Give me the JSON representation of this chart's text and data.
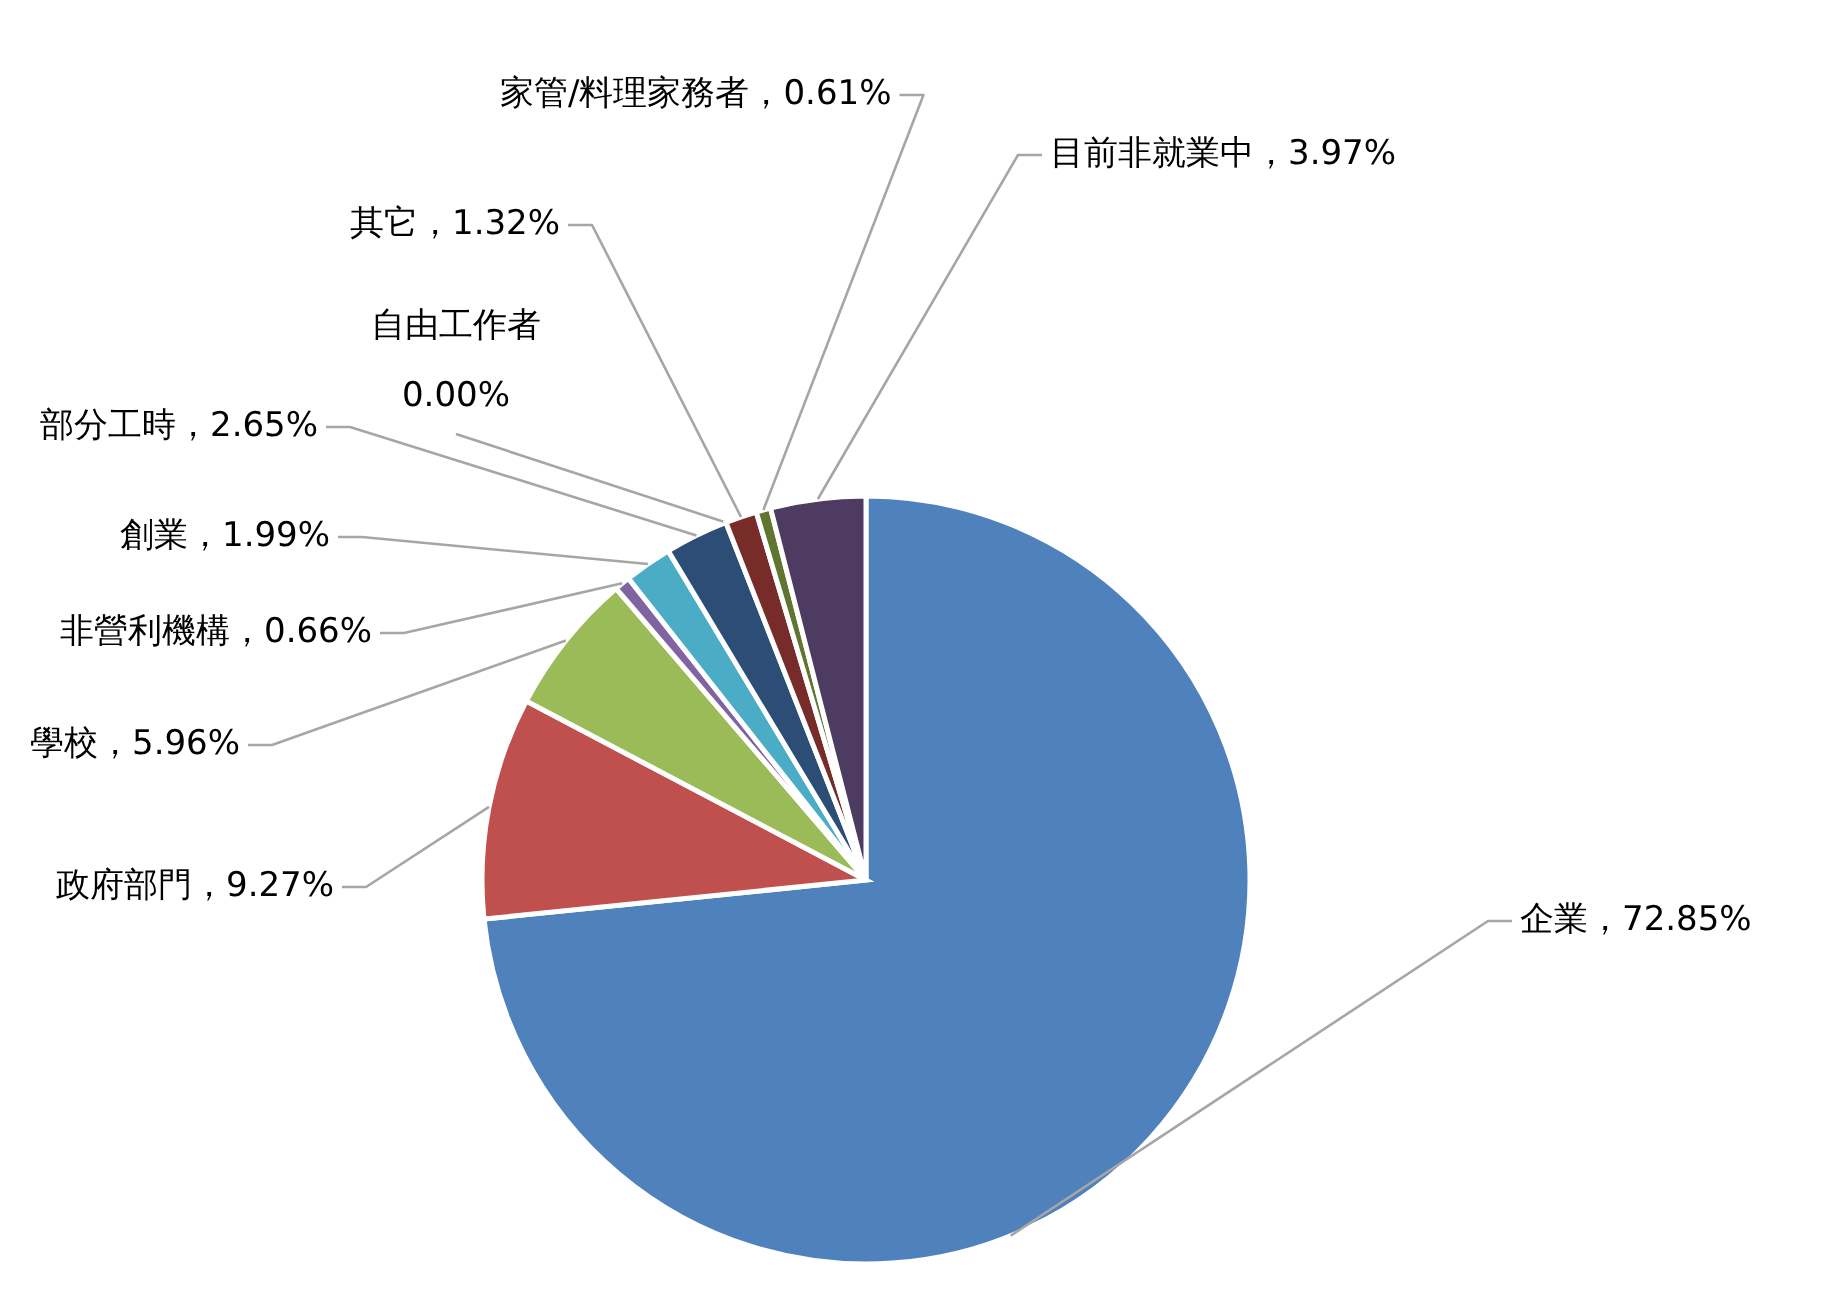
{
  "chart_data": {
    "type": "pie",
    "categories": [
      "企業",
      "政府部門",
      "學校",
      "非營利機構",
      "創業",
      "部分工時",
      "自由工作者",
      "其它",
      "家管/料理家務者",
      "目前非就業中"
    ],
    "values": [
      72.85,
      9.27,
      5.96,
      0.66,
      1.99,
      2.65,
      0.0,
      1.32,
      0.61,
      3.97
    ],
    "value_labels": [
      "72.85%",
      "9.27%",
      "5.96%",
      "0.66%",
      "1.99%",
      "2.65%",
      "0.00%",
      "1.32%",
      "0.61%",
      "3.97%"
    ],
    "colors": [
      "#4f81bd",
      "#c0504d",
      "#9bbb59",
      "#8064a2",
      "#4bacc6",
      "#2c4d75",
      "#1f3a5f",
      "#772c2a",
      "#5f7530",
      "#4d3b62"
    ]
  }
}
